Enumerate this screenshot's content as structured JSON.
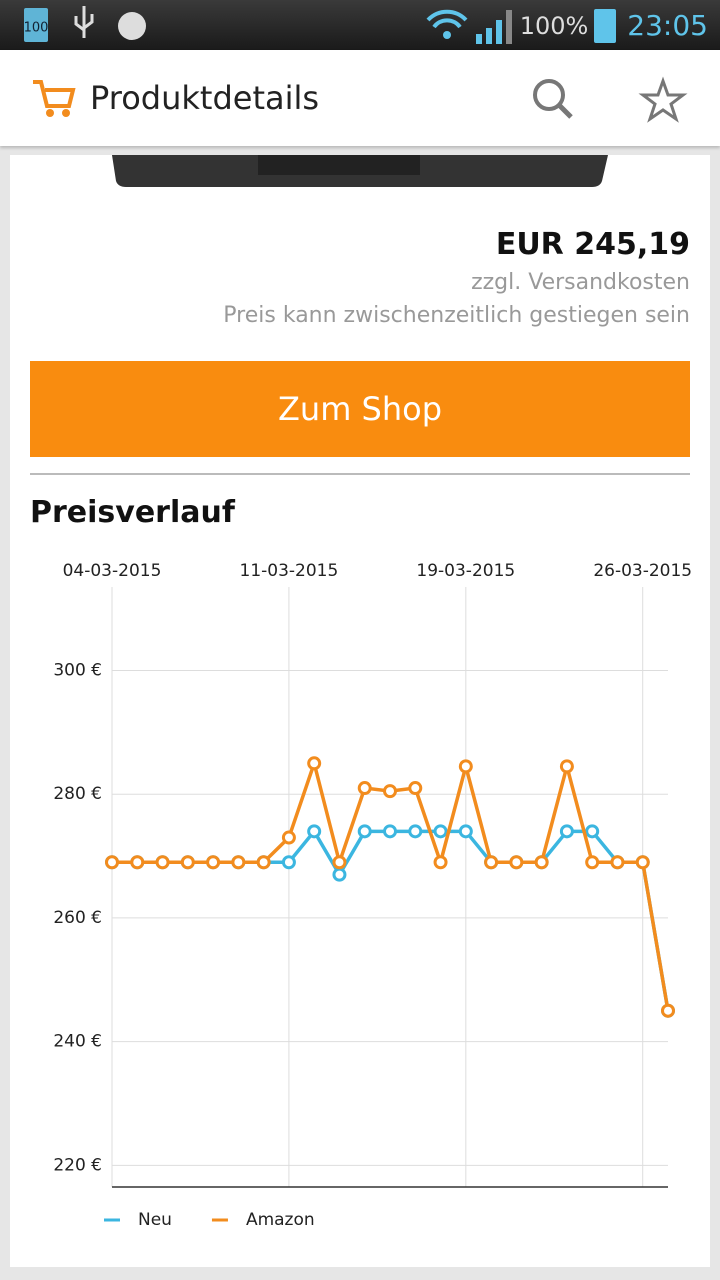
{
  "status_bar": {
    "battery_badge": "100",
    "battery": "100%",
    "time": "23:05"
  },
  "header": {
    "title": "Produktdetails"
  },
  "product": {
    "price": "EUR 245,19",
    "shipping": "zzgl. Versandkosten",
    "note": "Preis kann zwischenzeitlich gestiegen sein"
  },
  "button": "Zum Shop",
  "section_title": "Preisverlauf",
  "chart_data": {
    "type": "line",
    "categories": [
      "04-03-2015",
      null,
      null,
      null,
      null,
      null,
      null,
      "11-03-2015",
      null,
      null,
      null,
      null,
      null,
      null,
      "19-03-2015",
      null,
      null,
      null,
      null,
      null,
      null,
      "26-03-2015",
      null
    ],
    "series": [
      {
        "name": "Neu",
        "color": "#3bb6e0",
        "values": [
          269,
          269,
          269,
          269,
          269,
          269,
          269,
          269,
          274,
          267,
          274,
          274,
          274,
          274,
          274,
          269,
          269,
          269,
          274,
          274,
          269,
          269,
          245
        ]
      },
      {
        "name": "Amazon",
        "color": "#f28c1e",
        "values": [
          269,
          269,
          269,
          269,
          269,
          269,
          269,
          273,
          285,
          269,
          281,
          280.5,
          281,
          269,
          284.5,
          269,
          269,
          269,
          284.5,
          269,
          269,
          269,
          245
        ]
      }
    ],
    "ylim": [
      216.5,
      313.5
    ],
    "yticks": [
      {
        "value": 220,
        "label": "220 €"
      },
      {
        "value": 240,
        "label": "240 €"
      },
      {
        "value": 260,
        "label": "260 €"
      },
      {
        "value": 280,
        "label": "280 €"
      },
      {
        "value": 300,
        "label": "300 €"
      }
    ],
    "grid": true
  }
}
